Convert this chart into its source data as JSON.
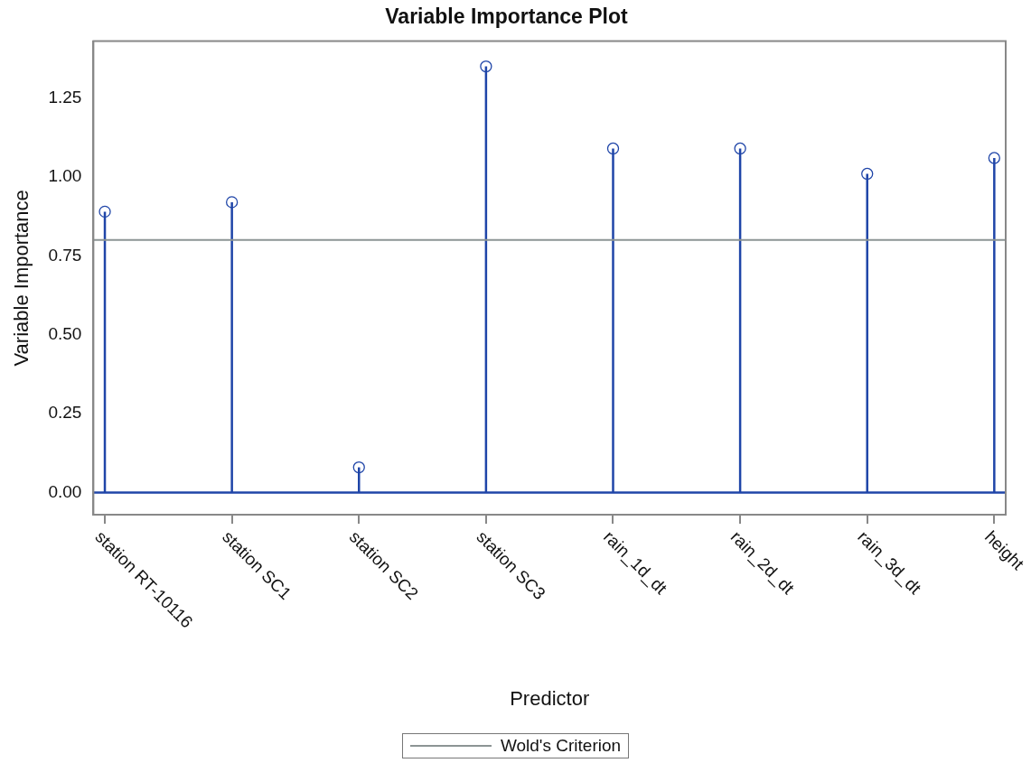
{
  "chart_data": {
    "type": "lollipop",
    "title": "Variable Importance Plot",
    "xlabel": "Predictor",
    "ylabel": "Variable Importance",
    "categories": [
      "station RT-10116",
      "station SC1",
      "station SC2",
      "station SC3",
      "rain_1d_dt",
      "rain_2d_dt",
      "rain_3d_dt",
      "height"
    ],
    "values": [
      0.89,
      0.92,
      0.08,
      1.35,
      1.09,
      1.09,
      1.01,
      1.06
    ],
    "color": "#1f45a8",
    "marker": "circle",
    "ylim": [
      -0.07,
      1.43
    ],
    "yticks": [
      {
        "value": 0,
        "label": "0.00"
      },
      {
        "value": 0.25,
        "label": "0.25"
      },
      {
        "value": 0.5,
        "label": "0.50"
      },
      {
        "value": 0.75,
        "label": "0.75"
      },
      {
        "value": 1,
        "label": "1.00"
      },
      {
        "value": 1.25,
        "label": "1.25"
      }
    ],
    "ref_lines": [
      {
        "axis": "y",
        "value": 0,
        "color": "#1f45a8"
      },
      {
        "axis": "y",
        "value": 0.8,
        "label": "Wold's Criterion",
        "color": "#8c9494"
      }
    ],
    "legend": "bottom",
    "grid": false
  }
}
